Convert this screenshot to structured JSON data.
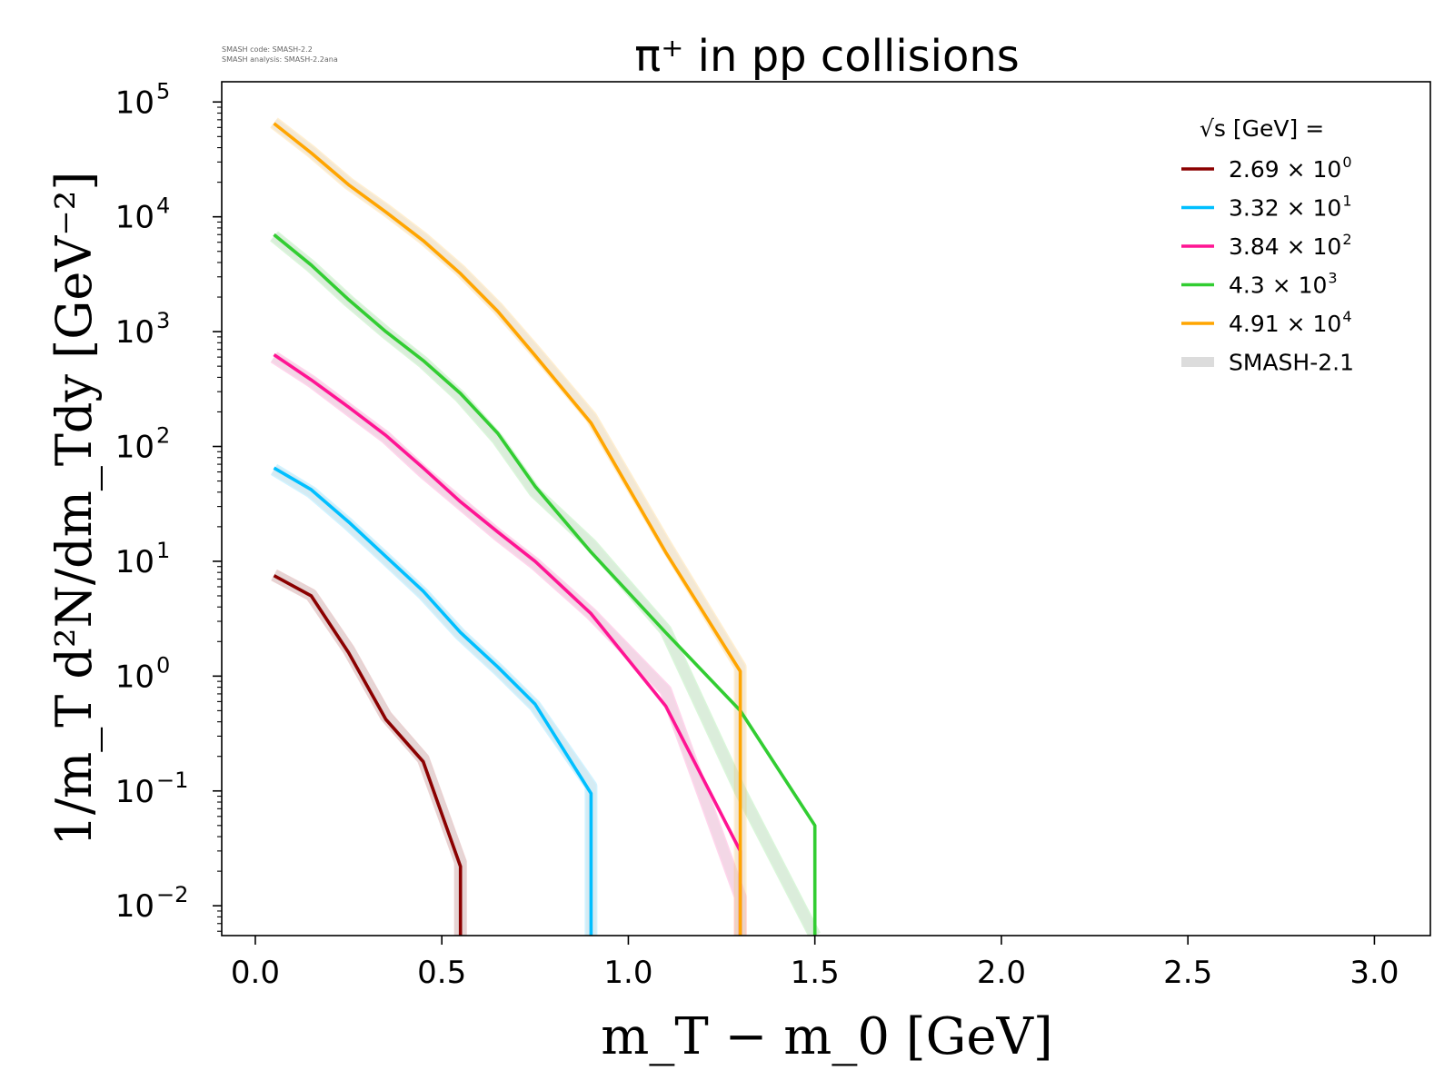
{
  "meta": {
    "line1": "SMASH code:      SMASH-2.2",
    "line2": "SMASH analysis: SMASH-2.2ana"
  },
  "chart_data": {
    "type": "line",
    "title": "π⁺ in pp collisions",
    "xlabel": "m_T − m_0 [GeV]",
    "ylabel": "1/m_T d²N/dm_Tdy [GeV⁻²]",
    "xlim": [
      -0.09,
      3.15
    ],
    "ylim": [
      0.0055,
      150000
    ],
    "yscale": "log",
    "grid": false,
    "legend_position": "top-right",
    "legend_title": "√s [GeV] =",
    "x_ticks": [
      "0.0",
      "0.5",
      "1.0",
      "1.5",
      "2.0",
      "2.5",
      "3.0"
    ],
    "y_ticks": [
      {
        "base": "10",
        "exp": "−2",
        "value": 0.01
      },
      {
        "base": "10",
        "exp": "−1",
        "value": 0.1
      },
      {
        "base": "10",
        "exp": "0",
        "value": 1
      },
      {
        "base": "10",
        "exp": "1",
        "value": 10
      },
      {
        "base": "10",
        "exp": "2",
        "value": 100
      },
      {
        "base": "10",
        "exp": "3",
        "value": 1000
      },
      {
        "base": "10",
        "exp": "4",
        "value": 10000
      },
      {
        "base": "10",
        "exp": "5",
        "value": 100000
      }
    ],
    "series": [
      {
        "name": "2.69 × 10⁰",
        "mantissa": "2.69",
        "exp": "0",
        "color": "#8b0000",
        "x": [
          0.05,
          0.15,
          0.25,
          0.35,
          0.45,
          0.55,
          0.55
        ],
        "y": [
          7.5,
          5.0,
          1.6,
          0.42,
          0.18,
          0.022,
          0.0055
        ],
        "ref_y": [
          7.6,
          5.1,
          1.7,
          0.45,
          0.19,
          0.024,
          0.0055
        ]
      },
      {
        "name": "3.32 × 10¹",
        "mantissa": "3.32",
        "exp": "1",
        "color": "#00bfff",
        "x": [
          0.05,
          0.15,
          0.25,
          0.35,
          0.45,
          0.55,
          0.65,
          0.75,
          0.9,
          0.9
        ],
        "y": [
          65,
          42,
          22,
          11,
          5.5,
          2.4,
          1.2,
          0.57,
          0.095,
          0.0055
        ],
        "ref_y": [
          63,
          40,
          21,
          10.5,
          5.2,
          2.3,
          1.15,
          0.55,
          0.11,
          0.0055
        ]
      },
      {
        "name": "3.84 × 10²",
        "mantissa": "3.84",
        "exp": "2",
        "color": "#ff1493",
        "x": [
          0.05,
          0.15,
          0.25,
          0.35,
          0.45,
          0.55,
          0.65,
          0.75,
          0.9,
          1.1,
          1.3,
          1.3
        ],
        "y": [
          630,
          380,
          220,
          125,
          65,
          33,
          18,
          10,
          3.5,
          0.55,
          0.03,
          0.0055
        ],
        "ref_y": [
          600,
          370,
          210,
          120,
          60,
          32,
          17,
          9.5,
          3.5,
          0.75,
          0.012,
          0.0055
        ]
      },
      {
        "name": "4.3 × 10³",
        "mantissa": "4.3",
        "exp": "3",
        "color": "#32cd32",
        "x": [
          0.05,
          0.15,
          0.25,
          0.35,
          0.45,
          0.55,
          0.65,
          0.75,
          0.9,
          1.1,
          1.3,
          1.5,
          1.5
        ],
        "y": [
          7000,
          3800,
          1900,
          1000,
          560,
          290,
          130,
          45,
          12,
          2.4,
          0.5,
          0.05,
          0.0055
        ],
        "ref_y": [
          6800,
          3700,
          1850,
          980,
          540,
          270,
          115,
          40,
          14,
          2.5,
          0.1,
          0.0055,
          0.0055
        ]
      },
      {
        "name": "4.91 × 10⁴",
        "mantissa": "4.91",
        "exp": "4",
        "color": "#ffa500",
        "x": [
          0.05,
          0.15,
          0.25,
          0.35,
          0.45,
          0.55,
          0.65,
          0.75,
          0.9,
          1.1,
          1.3,
          1.3
        ],
        "y": [
          65000,
          36000,
          19000,
          11000,
          6200,
          3200,
          1500,
          620,
          160,
          12,
          1.1,
          0.0055
        ],
        "ref_y": [
          66000,
          37000,
          19500,
          11500,
          6500,
          3400,
          1600,
          680,
          180,
          14,
          1.2,
          0.0055
        ]
      }
    ],
    "reference": {
      "name": "SMASH-2.1",
      "color": "#dcdcdc"
    }
  }
}
